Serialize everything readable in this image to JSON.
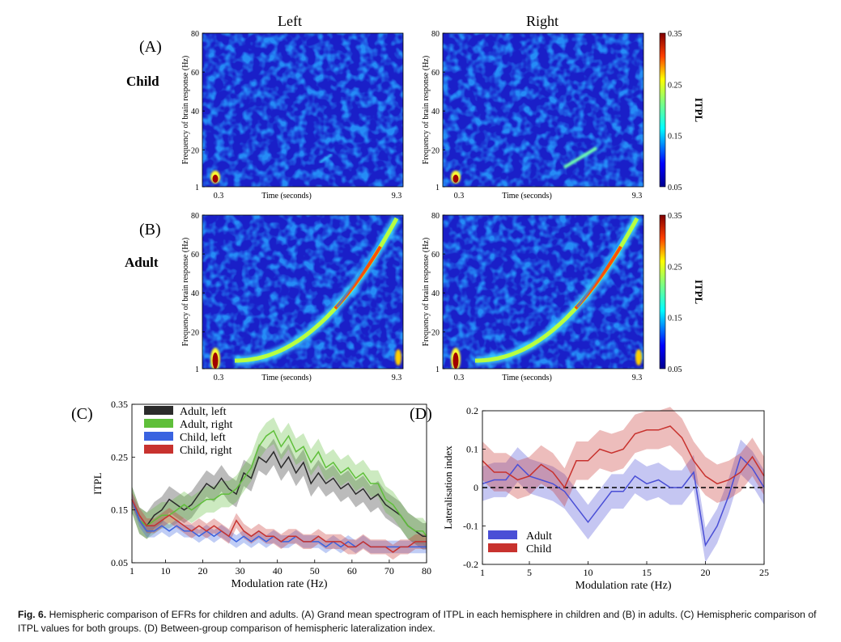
{
  "figure": {
    "col_left": "Left",
    "col_right": "Right",
    "panel_a": "(A)",
    "panel_b": "(B)",
    "panel_c": "(C)",
    "panel_d": "(D)",
    "row_child": "Child",
    "row_adult": "Adult"
  },
  "caption": {
    "label": "Fig. 6.",
    "text": "Hemispheric comparison of EFRs for children and adults. (A) Grand mean spectrogram of ITPL in each hemisphere in children and (B) in adults. (C) Hemispheric comparison of ITPL values for both groups. (D) Between-group comparison of hemispheric lateralization index."
  },
  "colors": {
    "adult_left": "#2b2b2b",
    "adult_right": "#5fbf3a",
    "child_left": "#3a63e0",
    "child_right": "#c8322e",
    "adult_d": "#4a4fd6",
    "child_d": "#c8322e",
    "spec_bg": "#1a1fc8"
  },
  "chart_data": [
    {
      "type": "heatmap",
      "panel": "A-left",
      "ylabel": "Frequency of brain response (Hz)",
      "xlabel": "Time (seconds)",
      "yticks": [
        "1",
        "20",
        "40",
        "60",
        "80"
      ],
      "xticks": [
        "0.3",
        "9.3"
      ]
    },
    {
      "type": "heatmap",
      "panel": "A-right",
      "ylabel": "Frequency of brain response (Hz)",
      "xlabel": "Time (seconds)",
      "yticks": [
        "1",
        "20",
        "40",
        "60",
        "80"
      ],
      "xticks": [
        "0.3",
        "9.3"
      ],
      "colorbar": {
        "label": "ITPL",
        "ticks": [
          "0.35",
          "0.25",
          "0.15",
          "0.05"
        ]
      }
    },
    {
      "type": "heatmap",
      "panel": "B-left",
      "ylabel": "Frequency of brain response (Hz)",
      "xlabel": "Time (seconds)",
      "yticks": [
        "1",
        "20",
        "40",
        "60",
        "80"
      ],
      "xticks": [
        "0.3",
        "9.3"
      ]
    },
    {
      "type": "heatmap",
      "panel": "B-right",
      "ylabel": "Frequency of brain response (Hz)",
      "xlabel": "Time (seconds)",
      "yticks": [
        "1",
        "20",
        "40",
        "60",
        "80"
      ],
      "xticks": [
        "0.3",
        "9.3"
      ],
      "colorbar": {
        "label": "ITPL",
        "ticks": [
          "0.35",
          "0.25",
          "0.15",
          "0.05"
        ]
      }
    },
    {
      "type": "line",
      "panel": "C",
      "xlabel": "Modulation rate (Hz)",
      "ylabel": "ITPL",
      "xlim": [
        1,
        80
      ],
      "ylim": [
        0.05,
        0.35
      ],
      "xticks": [
        1,
        10,
        20,
        30,
        40,
        50,
        60,
        70,
        80
      ],
      "yticks": [
        "0.35",
        "0.25",
        "0.15",
        "0.05"
      ],
      "legend": "top-left",
      "x": [
        1,
        3,
        5,
        7,
        9,
        11,
        13,
        15,
        17,
        19,
        21,
        23,
        25,
        27,
        29,
        31,
        33,
        35,
        37,
        39,
        41,
        43,
        45,
        47,
        49,
        51,
        53,
        55,
        57,
        59,
        61,
        63,
        65,
        67,
        69,
        71,
        73,
        75,
        77,
        79,
        80
      ],
      "series": [
        {
          "name": "Adult, left",
          "band": 0.025,
          "values": [
            0.17,
            0.13,
            0.12,
            0.14,
            0.15,
            0.17,
            0.16,
            0.15,
            0.16,
            0.18,
            0.2,
            0.19,
            0.21,
            0.19,
            0.18,
            0.22,
            0.21,
            0.25,
            0.24,
            0.26,
            0.23,
            0.25,
            0.22,
            0.24,
            0.2,
            0.22,
            0.2,
            0.21,
            0.19,
            0.2,
            0.18,
            0.19,
            0.17,
            0.18,
            0.16,
            0.15,
            0.14,
            0.12,
            0.11,
            0.1,
            0.1
          ]
        },
        {
          "name": "Adult, right",
          "band": 0.025,
          "values": [
            0.17,
            0.13,
            0.12,
            0.13,
            0.14,
            0.14,
            0.15,
            0.16,
            0.15,
            0.16,
            0.17,
            0.17,
            0.18,
            0.18,
            0.19,
            0.21,
            0.23,
            0.27,
            0.29,
            0.3,
            0.27,
            0.29,
            0.26,
            0.27,
            0.24,
            0.26,
            0.23,
            0.24,
            0.22,
            0.23,
            0.21,
            0.22,
            0.2,
            0.2,
            0.17,
            0.16,
            0.14,
            0.12,
            0.11,
            0.11,
            0.1
          ]
        },
        {
          "name": "Child, left",
          "band": 0.012,
          "values": [
            0.17,
            0.13,
            0.11,
            0.11,
            0.12,
            0.11,
            0.12,
            0.11,
            0.11,
            0.1,
            0.11,
            0.1,
            0.11,
            0.1,
            0.09,
            0.1,
            0.09,
            0.1,
            0.09,
            0.1,
            0.09,
            0.09,
            0.1,
            0.09,
            0.09,
            0.09,
            0.08,
            0.09,
            0.08,
            0.09,
            0.08,
            0.09,
            0.08,
            0.08,
            0.08,
            0.08,
            0.08,
            0.08,
            0.08,
            0.08,
            0.08
          ]
        },
        {
          "name": "Child, right",
          "band": 0.014,
          "values": [
            0.17,
            0.14,
            0.12,
            0.12,
            0.13,
            0.14,
            0.13,
            0.12,
            0.11,
            0.12,
            0.11,
            0.12,
            0.11,
            0.1,
            0.13,
            0.11,
            0.1,
            0.11,
            0.1,
            0.1,
            0.09,
            0.1,
            0.1,
            0.09,
            0.09,
            0.1,
            0.09,
            0.09,
            0.09,
            0.08,
            0.08,
            0.09,
            0.08,
            0.08,
            0.08,
            0.07,
            0.08,
            0.08,
            0.09,
            0.09,
            0.09
          ]
        }
      ]
    },
    {
      "type": "line",
      "panel": "D",
      "xlabel": "Modulation rate (Hz)",
      "ylabel": "Lateralisation index",
      "xlim": [
        1,
        25
      ],
      "ylim": [
        -0.2,
        0.2
      ],
      "xticks": [
        1,
        5,
        10,
        15,
        20,
        25
      ],
      "yticks": [
        "0.2",
        "0.1",
        "0",
        "-0.1",
        "-0.2"
      ],
      "reference_line": 0,
      "legend": "bottom-left",
      "x": [
        1,
        2,
        3,
        4,
        5,
        6,
        7,
        8,
        9,
        10,
        11,
        12,
        13,
        14,
        15,
        16,
        17,
        18,
        19,
        20,
        21,
        22,
        23,
        24,
        25
      ],
      "series": [
        {
          "name": "Adult",
          "band": 0.045,
          "values": [
            0.01,
            0.02,
            0.02,
            0.06,
            0.03,
            0.02,
            0.01,
            -0.01,
            -0.05,
            -0.09,
            -0.05,
            -0.01,
            -0.01,
            0.03,
            0.01,
            0.02,
            0.0,
            0.0,
            0.04,
            -0.15,
            -0.1,
            -0.02,
            0.08,
            0.05,
            0.0
          ]
        },
        {
          "name": "Child",
          "band": 0.05,
          "values": [
            0.07,
            0.04,
            0.04,
            0.02,
            0.03,
            0.06,
            0.04,
            0.0,
            0.07,
            0.07,
            0.1,
            0.09,
            0.1,
            0.14,
            0.15,
            0.15,
            0.16,
            0.13,
            0.07,
            0.03,
            0.01,
            0.02,
            0.04,
            0.08,
            0.03
          ]
        }
      ]
    }
  ]
}
